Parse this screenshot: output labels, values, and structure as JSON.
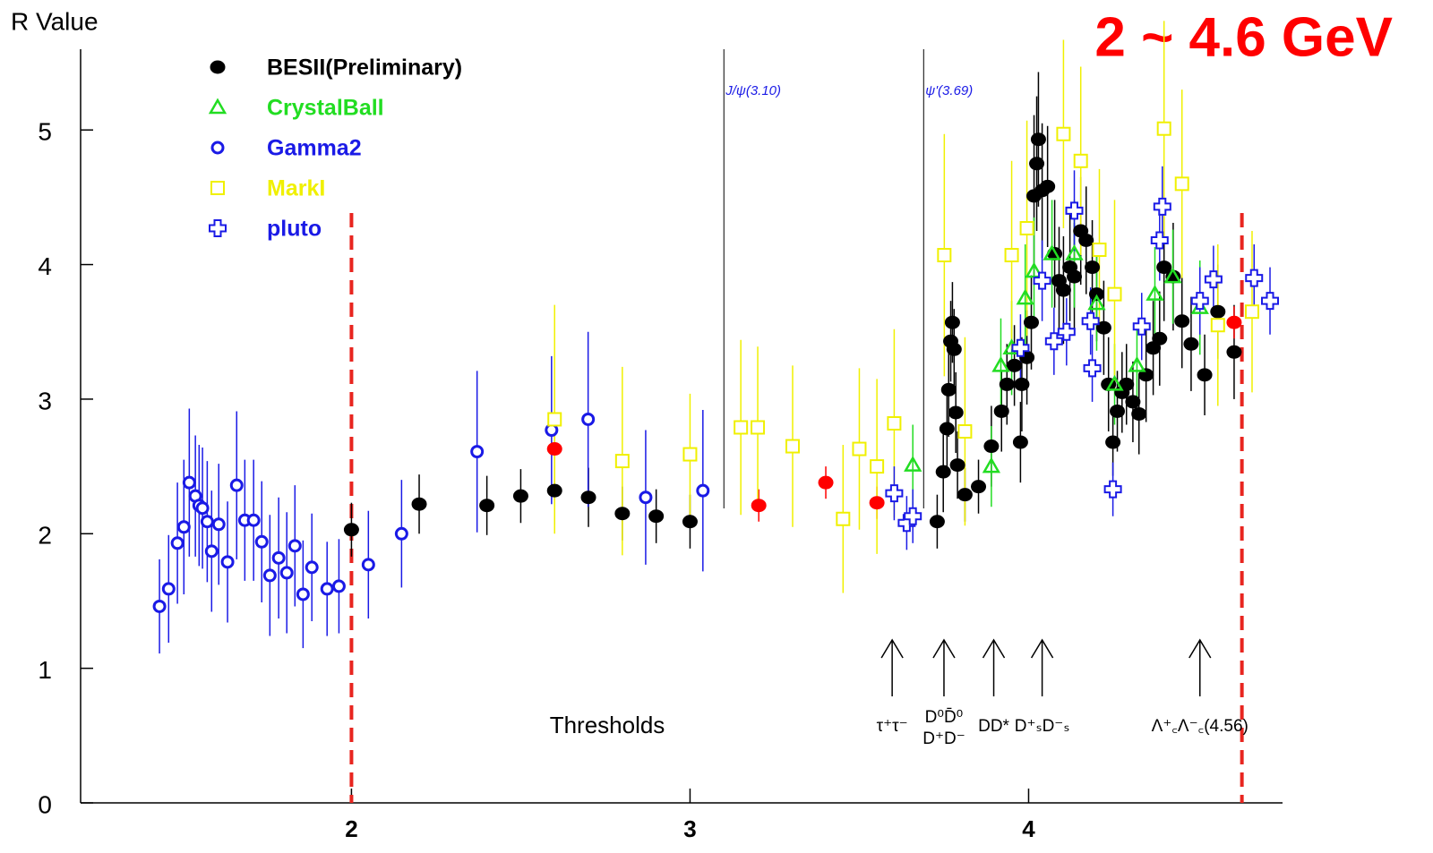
{
  "chart_data": {
    "type": "scatter",
    "title": "2 ~ 4.6 GeV",
    "y_label": "R Value",
    "xlim": [
      1.2,
      4.75
    ],
    "ylim": [
      0,
      5.6
    ],
    "xticks": [
      2,
      3,
      4
    ],
    "yticks": [
      0,
      1,
      2,
      3,
      4,
      5
    ],
    "resonances": [
      {
        "x": 3.1,
        "label": "J/ψ(3.10)"
      },
      {
        "x": 3.69,
        "label": "ψ'(3.69)"
      }
    ],
    "range_lines": [
      2,
      4.63
    ],
    "range_color": "#e8251f",
    "thresholds": {
      "label": "Thresholds",
      "arrows": [
        {
          "x": 3.597,
          "lines": [
            "τ⁺τ⁻"
          ]
        },
        {
          "x": 3.75,
          "lines": [
            "D⁰D̄⁰",
            "D⁺D⁻"
          ]
        },
        {
          "x": 3.897,
          "lines": [
            "DD*"
          ]
        },
        {
          "x": 4.04,
          "lines": [
            "D⁺ₛD⁻ₛ"
          ]
        },
        {
          "x": 4.506,
          "lines": [
            "Λ⁺꜀Λ⁻꜀(4.56)"
          ]
        }
      ]
    },
    "series": [
      {
        "name": "BESII(Preliminary)",
        "color": "#000000",
        "marker": "filled-circle",
        "x": [
          2.0,
          2.2,
          2.4,
          2.5,
          2.6,
          2.7,
          2.8,
          2.9,
          3.0,
          3.73,
          3.748,
          3.759,
          3.764,
          3.77,
          3.775,
          3.78,
          3.785,
          3.79,
          3.812,
          3.852,
          3.89,
          3.92,
          3.936,
          3.958,
          3.976,
          3.98,
          3.995,
          4.008,
          4.016,
          4.024,
          4.029,
          4.04,
          4.056,
          4.077,
          4.09,
          4.103,
          4.122,
          4.135,
          4.154,
          4.17,
          4.188,
          4.201,
          4.222,
          4.236,
          4.249,
          4.262,
          4.276,
          4.289,
          4.308,
          4.326,
          4.347,
          4.368,
          4.387,
          4.4,
          4.427,
          4.453,
          4.48,
          4.52,
          4.559,
          4.607
        ],
        "values": [
          2.03,
          2.22,
          2.21,
          2.28,
          2.32,
          2.27,
          2.15,
          2.13,
          2.09,
          2.09,
          2.46,
          2.78,
          3.07,
          3.43,
          3.57,
          3.37,
          2.9,
          2.51,
          2.29,
          2.35,
          2.65,
          2.91,
          3.11,
          3.25,
          2.68,
          3.11,
          3.31,
          3.57,
          4.51,
          4.75,
          4.93,
          4.55,
          4.58,
          4.08,
          3.88,
          3.81,
          3.98,
          3.91,
          4.25,
          4.18,
          3.98,
          3.78,
          3.53,
          3.11,
          2.68,
          2.91,
          3.05,
          3.11,
          2.98,
          2.89,
          3.18,
          3.38,
          3.45,
          3.98,
          3.91,
          3.58,
          3.41,
          3.18,
          3.65,
          3.35
        ],
        "errors": [
          0.2,
          0.22,
          0.22,
          0.2,
          0.25,
          0.22,
          0.2,
          0.2,
          0.2,
          0.2,
          0.3,
          0.3,
          0.35,
          0.3,
          0.3,
          0.3,
          0.3,
          0.25,
          0.2,
          0.2,
          0.3,
          0.3,
          0.3,
          0.3,
          0.3,
          0.35,
          0.35,
          0.35,
          0.6,
          0.5,
          0.5,
          0.5,
          0.45,
          0.4,
          0.4,
          0.4,
          0.4,
          0.4,
          0.4,
          0.4,
          0.35,
          0.35,
          0.35,
          0.35,
          0.25,
          0.3,
          0.3,
          0.3,
          0.3,
          0.3,
          0.35,
          0.35,
          0.35,
          0.4,
          0.4,
          0.35,
          0.35,
          0.3,
          0.35,
          0.35
        ]
      },
      {
        "color": "#ff0000",
        "marker": "filled-circle",
        "x": [
          2.6,
          3.203,
          3.401,
          3.552,
          4.607
        ],
        "values": [
          2.63,
          2.21,
          2.38,
          2.23,
          3.57
        ],
        "errors": [
          0.12,
          0.12,
          0.12,
          0.12,
          0.12
        ]
      },
      {
        "name": "CrystalBall",
        "color": "#22dd22",
        "marker": "triangle",
        "x": [
          3.658,
          3.89,
          3.918,
          3.95,
          3.99,
          4.016,
          4.069,
          4.135,
          4.201,
          4.254,
          4.32,
          4.373,
          4.426,
          4.506
        ],
        "values": [
          2.51,
          2.5,
          3.25,
          3.38,
          3.75,
          3.95,
          4.08,
          4.08,
          3.71,
          3.11,
          3.25,
          3.78,
          3.91,
          3.68
        ],
        "errors": [
          0.3,
          0.3,
          0.35,
          0.35,
          0.4,
          0.4,
          0.4,
          0.4,
          0.35,
          0.3,
          0.3,
          0.35,
          0.35,
          0.35
        ]
      },
      {
        "name": "Gamma2",
        "color": "#1a1ae6",
        "marker": "circle",
        "x": [
          1.433,
          1.46,
          1.486,
          1.505,
          1.521,
          1.539,
          1.55,
          1.56,
          1.574,
          1.587,
          1.608,
          1.634,
          1.661,
          1.685,
          1.711,
          1.735,
          1.759,
          1.785,
          1.809,
          1.833,
          1.857,
          1.883,
          1.928,
          1.963,
          2.05,
          2.148,
          2.371,
          2.591,
          2.699,
          2.869,
          3.038
        ],
        "values": [
          1.46,
          1.59,
          1.93,
          2.05,
          2.38,
          2.28,
          2.21,
          2.19,
          2.09,
          1.87,
          2.07,
          1.79,
          2.36,
          2.1,
          2.1,
          1.94,
          1.69,
          1.82,
          1.71,
          1.91,
          1.55,
          1.75,
          1.59,
          1.61,
          1.77,
          2.0,
          2.61,
          2.77,
          2.85,
          2.27,
          2.32
        ],
        "errors": [
          0.35,
          0.4,
          0.45,
          0.5,
          0.55,
          0.45,
          0.45,
          0.45,
          0.45,
          0.45,
          0.45,
          0.45,
          0.55,
          0.45,
          0.45,
          0.45,
          0.45,
          0.45,
          0.45,
          0.45,
          0.4,
          0.4,
          0.35,
          0.35,
          0.4,
          0.4,
          0.6,
          0.55,
          0.65,
          0.5,
          0.6
        ]
      },
      {
        "name": "MarkI",
        "color": "#f0f000",
        "marker": "square",
        "x": [
          2.6,
          2.8,
          3.0,
          3.15,
          3.2,
          3.303,
          3.452,
          3.5,
          3.552,
          3.603,
          3.751,
          3.812,
          3.95,
          3.995,
          4.103,
          4.154,
          4.209,
          4.254,
          4.4,
          4.453,
          4.559,
          4.66
        ],
        "values": [
          2.85,
          2.54,
          2.59,
          2.79,
          2.79,
          2.65,
          2.11,
          2.63,
          2.5,
          2.82,
          4.07,
          2.76,
          4.07,
          4.27,
          4.97,
          4.77,
          4.11,
          3.78,
          5.01,
          4.6,
          3.55,
          3.65
        ],
        "errors": [
          0.85,
          0.7,
          0.45,
          0.65,
          0.6,
          0.6,
          0.55,
          0.6,
          0.65,
          0.7,
          0.9,
          0.7,
          0.7,
          0.8,
          0.7,
          0.7,
          0.6,
          0.7,
          0.8,
          0.7,
          0.6,
          0.6
        ]
      },
      {
        "name": "pluto",
        "color": "#1a1ae6",
        "marker": "cross",
        "x": [
          3.603,
          3.64,
          3.658,
          3.976,
          4.04,
          4.075,
          4.112,
          4.135,
          4.183,
          4.188,
          4.249,
          4.334,
          4.387,
          4.395,
          4.506,
          4.546,
          4.666,
          4.713
        ],
        "values": [
          2.3,
          2.08,
          2.13,
          3.38,
          3.88,
          3.43,
          3.5,
          4.4,
          3.58,
          3.23,
          2.33,
          3.54,
          4.18,
          4.43,
          3.73,
          3.89,
          3.9,
          3.73
        ],
        "errors": [
          0.2,
          0.2,
          0.2,
          0.25,
          0.3,
          0.25,
          0.25,
          0.3,
          0.25,
          0.25,
          0.2,
          0.25,
          0.3,
          0.3,
          0.25,
          0.25,
          0.25,
          0.25
        ]
      }
    ]
  }
}
